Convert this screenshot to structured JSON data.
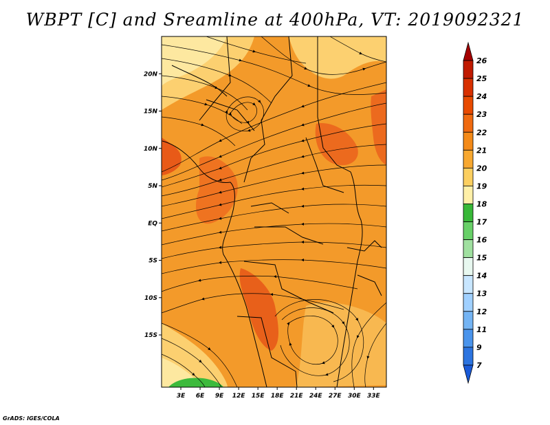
{
  "title": "WBPT [C] and Sreamline at 400hPa, VT: 2019092321",
  "credit": "GrADS: IGES/COLA",
  "map": {
    "lon_range": [
      0,
      35
    ],
    "lat_range": [
      -22,
      25
    ],
    "lon_ticks": [
      "3E",
      "6E",
      "9E",
      "12E",
      "15E",
      "18E",
      "21E",
      "24E",
      "27E",
      "30E",
      "33E"
    ],
    "lat_ticks": [
      "20N",
      "15N",
      "10N",
      "5N",
      "EQ",
      "5S",
      "10S",
      "15S"
    ],
    "colorbar_labels": [
      "26",
      "25",
      "24",
      "23",
      "22",
      "21",
      "20",
      "19",
      "18",
      "17",
      "16",
      "15",
      "14",
      "13",
      "12",
      "11",
      "9",
      "7"
    ],
    "colorbar_colors": [
      "#a50000",
      "#c01a00",
      "#d83000",
      "#e84a00",
      "#f06a10",
      "#f48a18",
      "#f8a830",
      "#fccf60",
      "#fff0a8",
      "#38b838",
      "#68d068",
      "#a0e0a0",
      "#e8f8f0",
      "#c8e6ff",
      "#a0d0ff",
      "#74b4f4",
      "#4a94ec",
      "#2c74e0",
      "#1a5ad8"
    ],
    "background_color": "#f39a2a"
  }
}
